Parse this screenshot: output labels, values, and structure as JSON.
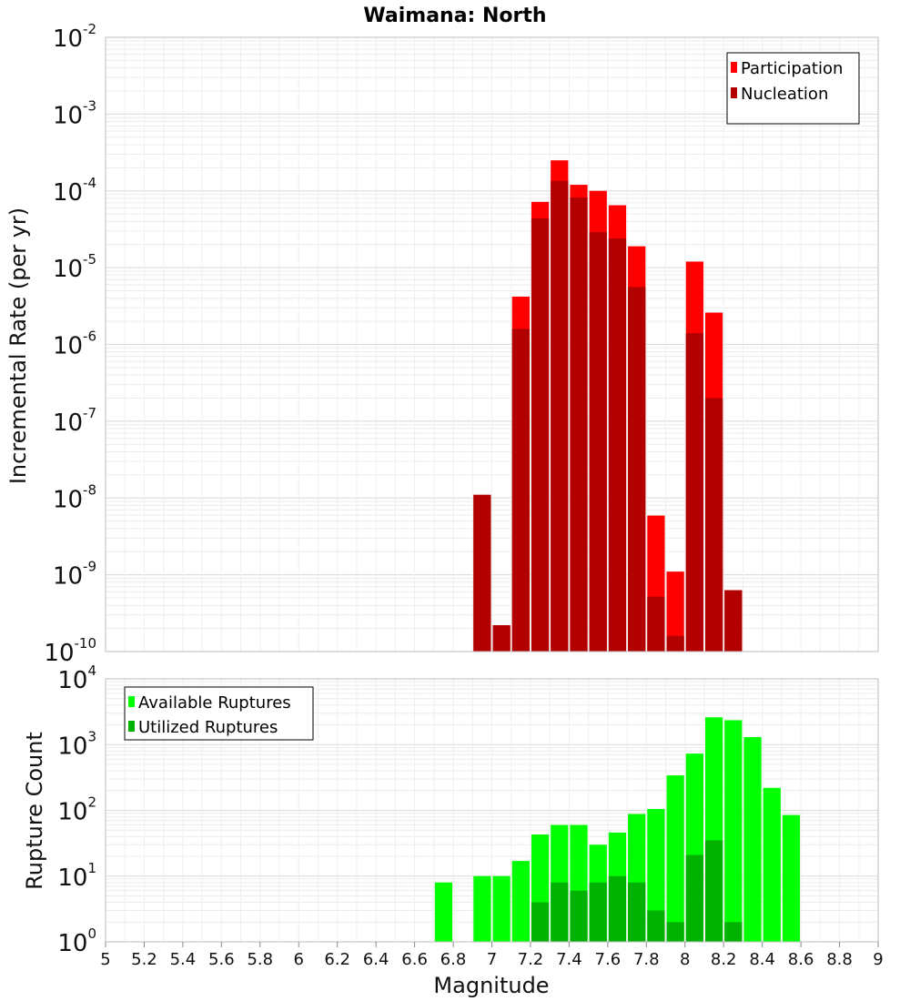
{
  "chart_data": {
    "title": "Waimana: North",
    "xlabel": "Magnitude",
    "x_ticks": [
      "5",
      "5.2",
      "5.4",
      "5.6",
      "5.8",
      "6",
      "6.2",
      "6.4",
      "6.6",
      "6.8",
      "7",
      "7.2",
      "7.4",
      "7.6",
      "7.8",
      "8",
      "8.2",
      "8.4",
      "8.6",
      "8.8",
      "9"
    ],
    "xlim": [
      5,
      9
    ],
    "panels": [
      {
        "type": "bar",
        "ylabel": "Incremental Rate (per yr)",
        "yscale": "log",
        "ylim_exp": [
          -10,
          -2
        ],
        "y_tick_exponents": [
          "-2",
          "-3",
          "-4",
          "-5",
          "-6",
          "-7",
          "-8",
          "-9",
          "-10"
        ],
        "grid": true,
        "legend": {
          "placement": "top-right"
        },
        "series": [
          {
            "name": "Participation",
            "color": "#ff0000",
            "points": [
              {
                "x": 6.95,
                "y": 1.1e-08
              },
              {
                "x": 7.05,
                "y": 2.2e-10
              },
              {
                "x": 7.15,
                "y": 4.2e-06
              },
              {
                "x": 7.25,
                "y": 7.2e-05
              },
              {
                "x": 7.35,
                "y": 0.00025
              },
              {
                "x": 7.45,
                "y": 0.00012
              },
              {
                "x": 7.55,
                "y": 0.0001
              },
              {
                "x": 7.65,
                "y": 6.5e-05
              },
              {
                "x": 7.75,
                "y": 1.9e-05
              },
              {
                "x": 7.85,
                "y": 5.9e-09
              },
              {
                "x": 7.95,
                "y": 1.1e-09
              },
              {
                "x": 8.05,
                "y": 1.2e-05
              },
              {
                "x": 8.15,
                "y": 2.6e-06
              },
              {
                "x": 8.25,
                "y": 6.3e-10
              }
            ]
          },
          {
            "name": "Nucleation",
            "color": "#b20000",
            "points": [
              {
                "x": 6.95,
                "y": 1.1e-08
              },
              {
                "x": 7.05,
                "y": 2.2e-10
              },
              {
                "x": 7.15,
                "y": 1.6e-06
              },
              {
                "x": 7.25,
                "y": 4.4e-05
              },
              {
                "x": 7.35,
                "y": 0.000135
              },
              {
                "x": 7.45,
                "y": 8.2e-05
              },
              {
                "x": 7.55,
                "y": 2.9e-05
              },
              {
                "x": 7.65,
                "y": 2.4e-05
              },
              {
                "x": 7.75,
                "y": 5.6e-06
              },
              {
                "x": 7.85,
                "y": 5.2e-10
              },
              {
                "x": 7.95,
                "y": 1.6e-10
              },
              {
                "x": 8.05,
                "y": 1.4e-06
              },
              {
                "x": 8.15,
                "y": 2e-07
              },
              {
                "x": 8.25,
                "y": 6.3e-10
              }
            ]
          }
        ]
      },
      {
        "type": "bar",
        "ylabel": "Rupture Count",
        "yscale": "log",
        "ylim_exp": [
          0,
          4
        ],
        "y_tick_exponents": [
          "4",
          "3",
          "2",
          "1",
          "0"
        ],
        "grid": true,
        "legend": {
          "placement": "top-left"
        },
        "series": [
          {
            "name": "Available Ruptures",
            "color": "#00ff00",
            "points": [
              {
                "x": 6.75,
                "y": 8
              },
              {
                "x": 6.85,
                "y": 1
              },
              {
                "x": 6.95,
                "y": 10
              },
              {
                "x": 7.05,
                "y": 10
              },
              {
                "x": 7.15,
                "y": 17
              },
              {
                "x": 7.25,
                "y": 43
              },
              {
                "x": 7.35,
                "y": 60
              },
              {
                "x": 7.45,
                "y": 60
              },
              {
                "x": 7.55,
                "y": 30
              },
              {
                "x": 7.65,
                "y": 46
              },
              {
                "x": 7.75,
                "y": 88
              },
              {
                "x": 7.85,
                "y": 105
              },
              {
                "x": 7.95,
                "y": 340
              },
              {
                "x": 8.05,
                "y": 730
              },
              {
                "x": 8.15,
                "y": 2600
              },
              {
                "x": 8.25,
                "y": 2350
              },
              {
                "x": 8.35,
                "y": 1300
              },
              {
                "x": 8.45,
                "y": 220
              },
              {
                "x": 8.55,
                "y": 85
              }
            ]
          },
          {
            "name": "Utilized Ruptures",
            "color": "#00b200",
            "points": [
              {
                "x": 6.95,
                "y": 1
              },
              {
                "x": 7.05,
                "y": 1
              },
              {
                "x": 7.15,
                "y": 1
              },
              {
                "x": 7.25,
                "y": 4
              },
              {
                "x": 7.35,
                "y": 8
              },
              {
                "x": 7.45,
                "y": 6
              },
              {
                "x": 7.55,
                "y": 8
              },
              {
                "x": 7.65,
                "y": 10
              },
              {
                "x": 7.75,
                "y": 8
              },
              {
                "x": 7.85,
                "y": 3
              },
              {
                "x": 7.95,
                "y": 2
              },
              {
                "x": 8.05,
                "y": 21
              },
              {
                "x": 8.15,
                "y": 35
              },
              {
                "x": 8.25,
                "y": 2
              }
            ]
          }
        ]
      }
    ]
  }
}
